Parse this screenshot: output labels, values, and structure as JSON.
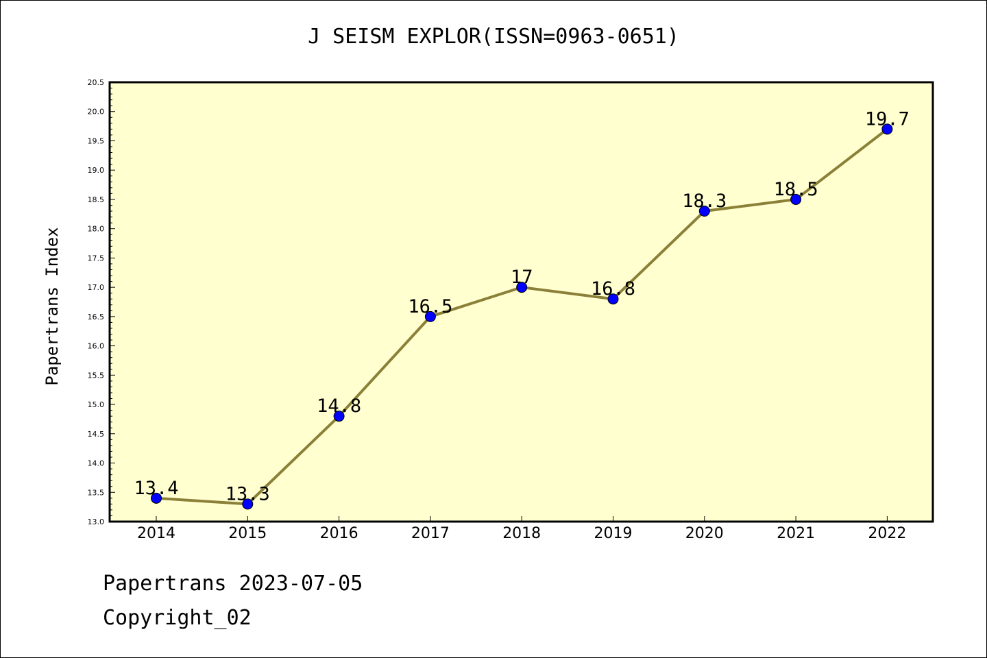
{
  "chart_data": {
    "type": "line",
    "title": "J SEISM EXPLOR(ISSN=0963-0651)",
    "ylabel": "Papertrans Index",
    "xlabel": "",
    "categories": [
      "2014",
      "2015",
      "2016",
      "2017",
      "2018",
      "2019",
      "2020",
      "2021",
      "2022"
    ],
    "series": [
      {
        "values": [
          13.4,
          13.3,
          14.8,
          16.5,
          17,
          16.8,
          18.3,
          18.5,
          19.7
        ]
      }
    ],
    "data_labels": [
      "13.4",
      "13.3",
      "14.8",
      "16.5",
      "17",
      "16.8",
      "18.3",
      "18.5",
      "19.7"
    ],
    "ylim": [
      13.0,
      20.5
    ],
    "yticks": [
      "13.0",
      "13.5",
      "14.0",
      "14.5",
      "15.0",
      "15.5",
      "16.0",
      "16.5",
      "17.0",
      "17.5",
      "18.0",
      "18.5",
      "19.0",
      "19.5",
      "20.0",
      "20.5"
    ],
    "grid": false,
    "legend": "none",
    "colors": {
      "plot_background": "#ffffd0",
      "line": "#8b8038",
      "marker": "#0000ff"
    }
  },
  "footer": {
    "line1": "Papertrans 2023-07-05",
    "line2": "Copyright_02"
  }
}
